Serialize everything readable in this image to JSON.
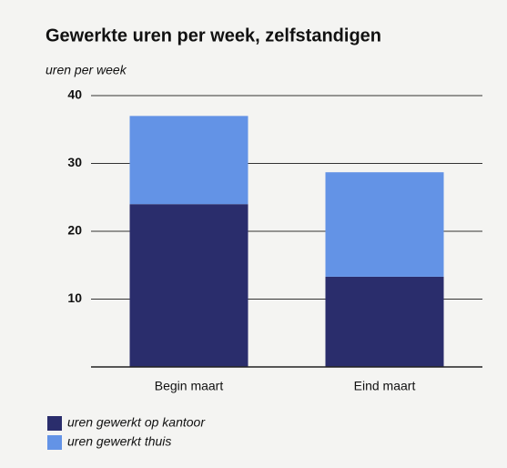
{
  "chart_data": {
    "type": "stacked-bar",
    "title": "Gewerkte uren per week, zelfstandigen",
    "y_label": "uren per week",
    "categories": [
      "Begin maart",
      "Eind maart"
    ],
    "series": [
      {
        "name": "uren gewerkt op kantoor",
        "color": "#2a2d6c",
        "values": [
          24,
          13.3
        ]
      },
      {
        "name": "uren gewerkt thuis",
        "color": "#6393e6",
        "values": [
          13,
          15.4
        ]
      }
    ],
    "ylim": [
      0,
      40
    ],
    "yticks": [
      10,
      20,
      30,
      40
    ],
    "grid": true
  }
}
